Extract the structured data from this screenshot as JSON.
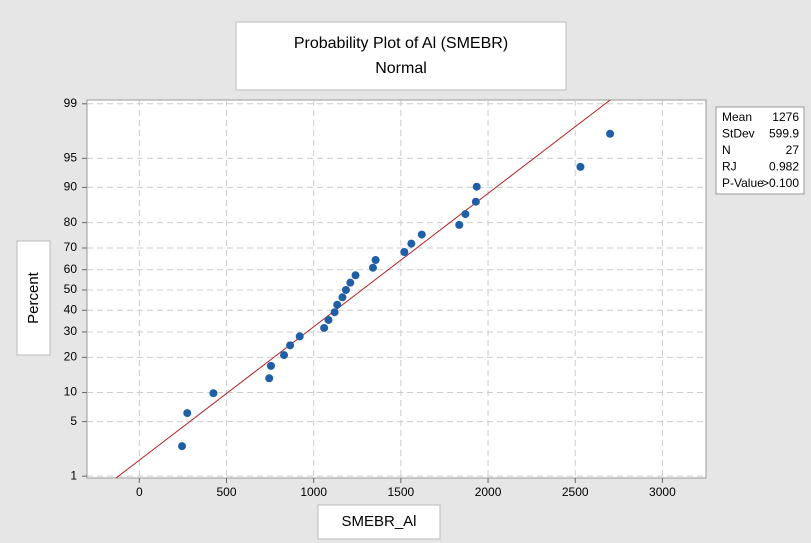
{
  "chart_data": {
    "type": "probability",
    "title": "Probability Plot of Al (SMEBR)",
    "subtitle": "Normal",
    "xlabel": "SMEBR_Al",
    "ylabel": "Percent",
    "x": [
      245,
      275,
      425,
      745,
      755,
      830,
      865,
      920,
      1060,
      1085,
      1120,
      1135,
      1165,
      1185,
      1210,
      1240,
      1340,
      1355,
      1520,
      1560,
      1620,
      1835,
      1870,
      1930,
      1935,
      2530,
      2700
    ],
    "values": [
      2.55,
      6.2,
      9.85,
      13.5,
      17.15,
      20.8,
      24.45,
      28.1,
      31.75,
      35.4,
      39.05,
      42.7,
      46.35,
      50.0,
      53.65,
      57.3,
      60.95,
      64.6,
      68.25,
      71.9,
      75.55,
      79.2,
      82.85,
      86.5,
      90.15,
      93.8,
      97.45
    ],
    "color": "#1f5fa6",
    "fit_color": "#b22222",
    "xlim": [
      -300,
      3250
    ],
    "xticks": [
      0,
      500,
      1000,
      1500,
      2000,
      2500,
      3000
    ],
    "ylim": [
      0.94,
      99.12
    ],
    "yticks": [
      1,
      5,
      10,
      20,
      30,
      40,
      50,
      60,
      70,
      80,
      90,
      95,
      99
    ],
    "grid": true,
    "stats": [
      {
        "label": "Mean",
        "value": 1276
      },
      {
        "label": "StDev",
        "value": 599.9
      },
      {
        "label": "N",
        "value": 27
      },
      {
        "label": "RJ",
        "value": 0.982
      },
      {
        "label": "P-Value",
        "value": ">0.100"
      }
    ]
  }
}
